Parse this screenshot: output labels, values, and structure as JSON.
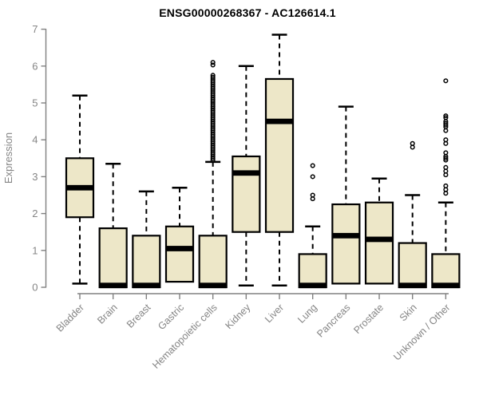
{
  "title": "ENSG00000268367 - AC126614.1",
  "chart_data": {
    "type": "box",
    "title": "ENSG00000268367 - AC126614.1",
    "xlabel": "",
    "ylabel": "Expression",
    "ylim": [
      0,
      7
    ],
    "yticks": [
      0,
      1,
      2,
      3,
      4,
      5,
      6,
      7
    ],
    "grid": "off",
    "legend": "none",
    "categories": [
      "Bladder",
      "Brain",
      "Breast",
      "Gastric",
      "Hematopoietic cells",
      "Kidney",
      "Liver",
      "Lung",
      "Pancreas",
      "Prostate",
      "Skin",
      "Unknown / Other"
    ],
    "series": [
      {
        "name": "Bladder",
        "whisker_low": 0.1,
        "q1": 1.9,
        "median": 2.7,
        "q3": 3.5,
        "whisker_high": 5.2,
        "outliers": []
      },
      {
        "name": "Brain",
        "whisker_low": 0.0,
        "q1": 0.0,
        "median": 0.05,
        "q3": 1.6,
        "whisker_high": 3.35,
        "outliers": []
      },
      {
        "name": "Breast",
        "whisker_low": 0.0,
        "q1": 0.0,
        "median": 0.05,
        "q3": 1.4,
        "whisker_high": 2.6,
        "outliers": []
      },
      {
        "name": "Gastric",
        "whisker_low": 0.05,
        "q1": 0.15,
        "median": 1.05,
        "q3": 1.65,
        "whisker_high": 2.7,
        "outliers": []
      },
      {
        "name": "Hematopoietic cells",
        "whisker_low": 0.0,
        "q1": 0.0,
        "median": 0.05,
        "q3": 1.4,
        "whisker_high": 3.4,
        "outliers": [
          6.1,
          6.03,
          5.75,
          5.7,
          5.65,
          5.6,
          5.55,
          5.5,
          5.45,
          5.4,
          5.35,
          5.3,
          5.25,
          5.2,
          5.15,
          5.1,
          5.05,
          5.0,
          4.95,
          4.9,
          4.85,
          4.8,
          4.75,
          4.7,
          4.65,
          4.6,
          4.55,
          4.5,
          4.45,
          4.4,
          4.35,
          4.3,
          4.25,
          4.2,
          4.15,
          4.1,
          4.05,
          4.0,
          3.95,
          3.9,
          3.85,
          3.8,
          3.75,
          3.7,
          3.65,
          3.6,
          3.55,
          3.5,
          3.45
        ]
      },
      {
        "name": "Kidney",
        "whisker_low": 0.05,
        "q1": 1.5,
        "median": 3.1,
        "q3": 3.55,
        "whisker_high": 6.0,
        "outliers": []
      },
      {
        "name": "Liver",
        "whisker_low": 0.05,
        "q1": 1.5,
        "median": 4.5,
        "q3": 5.65,
        "whisker_high": 6.85,
        "outliers": []
      },
      {
        "name": "Lung",
        "whisker_low": 0.0,
        "q1": 0.0,
        "median": 0.05,
        "q3": 0.9,
        "whisker_high": 1.65,
        "outliers": [
          3.3,
          3.0,
          2.5,
          2.4
        ]
      },
      {
        "name": "Pancreas",
        "whisker_low": 0.05,
        "q1": 0.1,
        "median": 1.4,
        "q3": 2.25,
        "whisker_high": 4.9,
        "outliers": []
      },
      {
        "name": "Prostate",
        "whisker_low": 0.05,
        "q1": 0.1,
        "median": 1.3,
        "q3": 2.3,
        "whisker_high": 2.95,
        "outliers": []
      },
      {
        "name": "Skin",
        "whisker_low": 0.0,
        "q1": 0.0,
        "median": 0.05,
        "q3": 1.2,
        "whisker_high": 2.5,
        "outliers": [
          3.9,
          3.8
        ]
      },
      {
        "name": "Unknown / Other",
        "whisker_low": 0.0,
        "q1": 0.0,
        "median": 0.05,
        "q3": 0.9,
        "whisker_high": 2.3,
        "outliers": [
          5.6,
          4.65,
          4.6,
          4.5,
          4.45,
          4.4,
          4.35,
          4.25,
          4.0,
          3.9,
          3.65,
          3.55,
          3.5,
          3.45,
          3.25,
          3.15,
          3.05,
          2.75,
          2.65,
          2.55
        ]
      }
    ],
    "colors": {
      "box_fill": "#EDE7C8",
      "box_stroke": "#000000",
      "median": "#000000",
      "whisker": "#000000",
      "axis": "#808080",
      "tick_label": "#858585",
      "title": "#000000"
    }
  }
}
